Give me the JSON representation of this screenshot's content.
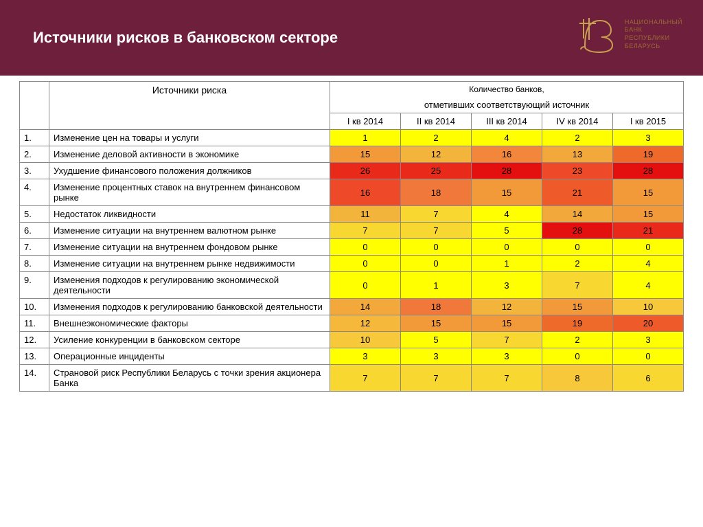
{
  "header": {
    "title": "Источники рисков в банковском секторе",
    "header_bg": "#6e1f3b",
    "logo_lines": [
      "НАЦИОНАЛЬНЫЙ",
      "БАНК",
      "РЕСПУБЛИКИ",
      "БЕЛАРУСЬ"
    ]
  },
  "table": {
    "header_source": "Источники риска",
    "header_count_top": "Количество банков,",
    "header_count_sub": "отметивших соответствующий источник",
    "columns": [
      "I кв 2014",
      "II кв 2014",
      "III кв 2014",
      "IV кв 2014",
      "I кв 2015"
    ],
    "rows": [
      {
        "n": "1.",
        "label": "Изменение цен на товары и услуги",
        "vals": [
          1,
          2,
          4,
          2,
          3
        ],
        "colors": [
          "#ffff00",
          "#ffff00",
          "#ffff00",
          "#ffff00",
          "#ffff00"
        ]
      },
      {
        "n": "2.",
        "label": "Изменение деловой активности в экономике",
        "vals": [
          15,
          12,
          16,
          13,
          19
        ],
        "colors": [
          "#f29a3a",
          "#f2b43a",
          "#f2863a",
          "#f2a83a",
          "#ee6a2a"
        ]
      },
      {
        "n": "3.",
        "label": "Ухудшение финансового положения должников",
        "vals": [
          26,
          25,
          28,
          23,
          28
        ],
        "colors": [
          "#e92a1a",
          "#e92a1a",
          "#e41010",
          "#ee4a2a",
          "#e41010"
        ]
      },
      {
        "n": "4.",
        "label": "Изменение процентных ставок на внутреннем финансовом рынке",
        "vals": [
          16,
          18,
          15,
          21,
          15
        ],
        "colors": [
          "#ee4a2a",
          "#f0783a",
          "#f29a3a",
          "#ee5a2a",
          "#f29a3a"
        ]
      },
      {
        "n": "5.",
        "label": "Недостаток ликвидности",
        "vals": [
          11,
          7,
          4,
          14,
          15
        ],
        "colors": [
          "#f2b43a",
          "#f8d830",
          "#ffff00",
          "#f2a83a",
          "#f29a3a"
        ]
      },
      {
        "n": "6.",
        "label": "Изменение ситуации на внутреннем валютном рынке",
        "vals": [
          7,
          7,
          5,
          28,
          21
        ],
        "colors": [
          "#f8d830",
          "#f8d830",
          "#ffff00",
          "#e41010",
          "#e92a1a"
        ]
      },
      {
        "n": "7.",
        "label": "Изменение ситуации на внутреннем фондовом рынке",
        "vals": [
          0,
          0,
          0,
          0,
          0
        ],
        "colors": [
          "#ffff00",
          "#ffff00",
          "#ffff00",
          "#ffff00",
          "#ffff00"
        ]
      },
      {
        "n": "8.",
        "label": "Изменение ситуации на внутреннем рынке недвижимости",
        "vals": [
          0,
          0,
          1,
          2,
          4
        ],
        "colors": [
          "#ffff00",
          "#ffff00",
          "#ffff00",
          "#ffff00",
          "#ffff00"
        ]
      },
      {
        "n": "9.",
        "label": "Изменения подходов к регулированию экономической деятельности",
        "vals": [
          0,
          1,
          3,
          7,
          4
        ],
        "colors": [
          "#ffff00",
          "#ffff00",
          "#ffff00",
          "#f8d830",
          "#ffff00"
        ]
      },
      {
        "n": "10.",
        "label": "Изменения подходов к регулированию банковской деятельности",
        "vals": [
          14,
          18,
          12,
          15,
          10
        ],
        "colors": [
          "#f2a83a",
          "#f0783a",
          "#f2b43a",
          "#f29a3a",
          "#f6c83a"
        ]
      },
      {
        "n": "11.",
        "label": "Внешнеэкономические факторы",
        "vals": [
          12,
          15,
          15,
          19,
          20
        ],
        "colors": [
          "#f6b83a",
          "#f29a3a",
          "#f29a3a",
          "#ee6a2a",
          "#ee5a2a"
        ]
      },
      {
        "n": "12.",
        "label": "Усиление конкуренции в банковском секторе",
        "vals": [
          10,
          5,
          7,
          2,
          3
        ],
        "colors": [
          "#f6c83a",
          "#ffff00",
          "#f8d830",
          "#ffff00",
          "#ffff00"
        ]
      },
      {
        "n": "13.",
        "label": "Операционные инциденты",
        "vals": [
          3,
          3,
          3,
          0,
          0
        ],
        "colors": [
          "#ffff00",
          "#ffff00",
          "#ffff00",
          "#ffff00",
          "#ffff00"
        ]
      },
      {
        "n": "14.",
        "label": "Страновой риск Республики Беларусь с точки зрения акционера Банка",
        "vals": [
          7,
          7,
          7,
          8,
          6
        ],
        "colors": [
          "#f8d830",
          "#f8d830",
          "#f8d830",
          "#f6c83a",
          "#f8d830"
        ]
      }
    ]
  }
}
